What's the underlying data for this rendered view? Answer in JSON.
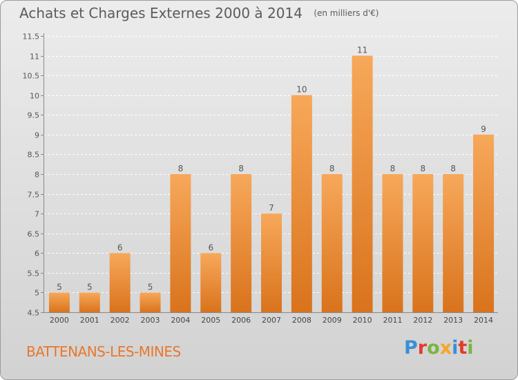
{
  "header": {
    "title": "Achats et Charges Externes 2000 à 2014",
    "subtitle": "(en milliers d'€)"
  },
  "footer": {
    "commune": "BATTENANS-LES-MINES",
    "brand": "Proxiti"
  },
  "colors": {
    "bar_top": "#f7a85a",
    "bar_bottom": "#d9731c",
    "commune_text": "#e8772e",
    "brand_letters": [
      "#3a8fd6",
      "#e23b2e",
      "#7cb342",
      "#f5a623",
      "#3a8fd6",
      "#e23b2e",
      "#7cb342"
    ]
  },
  "chart_data": {
    "type": "bar",
    "title": "Achats et Charges Externes 2000 à 2014",
    "subtitle": "(en milliers d'€)",
    "categories": [
      "2000",
      "2001",
      "2002",
      "2003",
      "2004",
      "2005",
      "2006",
      "2007",
      "2008",
      "2009",
      "2010",
      "2011",
      "2012",
      "2013",
      "2014"
    ],
    "values": [
      5,
      5,
      6,
      5,
      8,
      6,
      8,
      7,
      10,
      8,
      11,
      8,
      8,
      8,
      9
    ],
    "data_labels": [
      "5",
      "5",
      "6",
      "5",
      "8",
      "6",
      "8",
      "7",
      "10",
      "8",
      "11",
      "8",
      "8",
      "8",
      "9"
    ],
    "ylim": [
      4.5,
      11.5
    ],
    "yticks": [
      4.5,
      5,
      5.5,
      6,
      6.5,
      7,
      7.5,
      8,
      8.5,
      9,
      9.5,
      10,
      10.5,
      11,
      11.5
    ],
    "ytick_labels": [
      "4.5",
      "5",
      "5.5",
      "6",
      "6.5",
      "7",
      "7.5",
      "8",
      "8.5",
      "9",
      "9.5",
      "10",
      "10.5",
      "11",
      "11.5"
    ],
    "grid": true,
    "legend": "none"
  }
}
